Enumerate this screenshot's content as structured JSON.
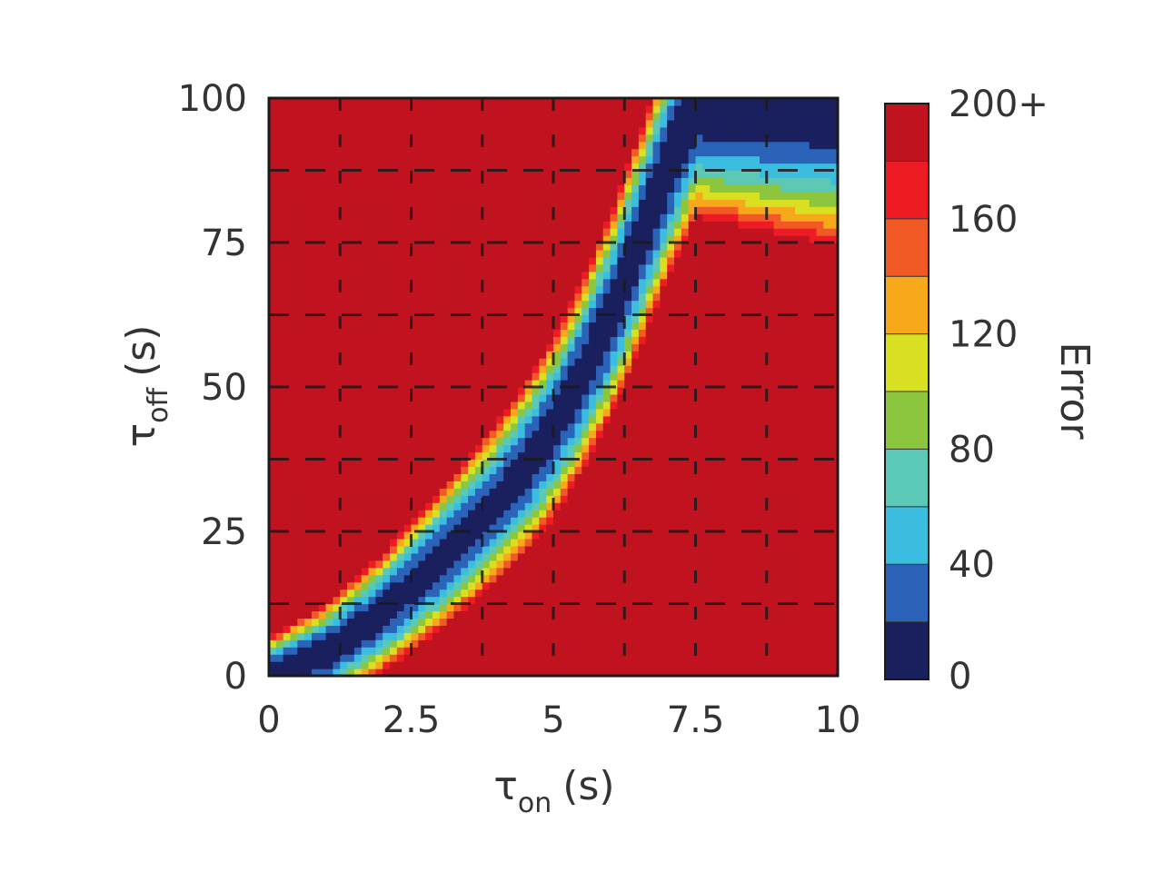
{
  "chart_data": {
    "type": "heatmap",
    "title": "",
    "xlabel": "τ",
    "xlabel_sub": "on",
    "xlabel_unit": "(s)",
    "ylabel": "τ",
    "ylabel_sub": "off",
    "ylabel_unit": "(s)",
    "xlim": [
      0,
      10
    ],
    "ylim": [
      0,
      100
    ],
    "x_ticks": [
      0,
      2.5,
      5,
      7.5,
      10
    ],
    "x_tick_labels": [
      "0",
      "2.5",
      "5",
      "7.5",
      "10"
    ],
    "y_ticks": [
      0,
      25,
      50,
      75,
      100
    ],
    "y_tick_labels": [
      "0",
      "25",
      "50",
      "75",
      "100"
    ],
    "grid": "dashed",
    "grid_x": [
      1.25,
      2.5,
      3.75,
      5,
      6.25,
      7.5,
      8.75
    ],
    "grid_y": [
      12.5,
      25,
      37.5,
      50,
      62.5,
      75,
      87.5
    ],
    "min_error_valley": [
      {
        "x": 0,
        "y": 0
      },
      {
        "x": 1,
        "y": 4
      },
      {
        "x": 2,
        "y": 11
      },
      {
        "x": 3,
        "y": 20
      },
      {
        "x": 3.5,
        "y": 25
      },
      {
        "x": 4,
        "y": 30
      },
      {
        "x": 4.5,
        "y": 36
      },
      {
        "x": 5,
        "y": 43
      },
      {
        "x": 5.5,
        "y": 52
      },
      {
        "x": 6,
        "y": 62
      },
      {
        "x": 6.5,
        "y": 75
      },
      {
        "x": 7,
        "y": 88
      },
      {
        "x": 7.5,
        "y": 100
      }
    ],
    "colorbar": {
      "label": "Error",
      "ticks": [
        0,
        40,
        80,
        120,
        160,
        200
      ],
      "tick_labels": [
        "0",
        "40",
        "80",
        "120",
        "160",
        "200+"
      ],
      "range": [
        0,
        200
      ],
      "levels": 10,
      "colors": [
        "#1a1f5e",
        "#2b63b8",
        "#3bbde0",
        "#5cc8b6",
        "#8cc63f",
        "#d9e021",
        "#f7a81b",
        "#f15a24",
        "#ed1c24",
        "#c1121f"
      ]
    }
  }
}
